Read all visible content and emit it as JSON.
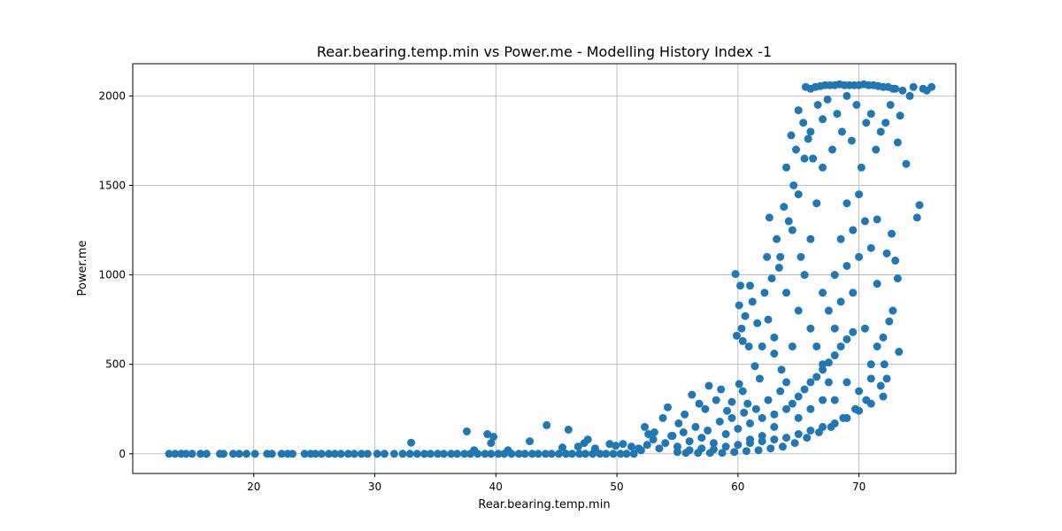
{
  "chart_data": {
    "type": "scatter",
    "title": "Rear.bearing.temp.min vs Power.me - Modelling History Index -1",
    "xlabel": "Rear.bearing.temp.min",
    "ylabel": "Power.me",
    "xlim": [
      10,
      78
    ],
    "ylim": [
      -110,
      2180
    ],
    "xticks": [
      20,
      30,
      40,
      50,
      60,
      70
    ],
    "yticks": [
      0,
      500,
      1000,
      1500,
      2000
    ],
    "grid": true,
    "marker_color": "#1f77b4",
    "series": [
      {
        "points": [
          [
            13,
            0
          ],
          [
            13.5,
            0
          ],
          [
            14,
            0
          ],
          [
            14.4,
            0
          ],
          [
            14.9,
            0
          ],
          [
            15.6,
            0
          ],
          [
            16.1,
            0
          ],
          [
            17.2,
            0
          ],
          [
            17.5,
            0
          ],
          [
            18.3,
            0
          ],
          [
            18.8,
            0
          ],
          [
            19.4,
            0
          ],
          [
            20.1,
            0
          ],
          [
            21.1,
            0
          ],
          [
            21.5,
            0
          ],
          [
            22.3,
            0
          ],
          [
            22.8,
            0
          ],
          [
            23.2,
            0
          ],
          [
            24.2,
            0
          ],
          [
            24.7,
            0
          ],
          [
            25.1,
            0
          ],
          [
            25.6,
            0
          ],
          [
            26.2,
            0
          ],
          [
            26.7,
            0
          ],
          [
            27.2,
            0
          ],
          [
            27.8,
            0
          ],
          [
            28.3,
            0
          ],
          [
            28.9,
            0
          ],
          [
            29.4,
            0
          ],
          [
            30.2,
            0
          ],
          [
            30.8,
            0
          ],
          [
            31.6,
            0
          ],
          [
            32.3,
            0
          ],
          [
            32.9,
            0
          ],
          [
            33.5,
            0
          ],
          [
            34.1,
            0
          ],
          [
            34.6,
            0
          ],
          [
            35.2,
            0
          ],
          [
            35.7,
            0
          ],
          [
            36.3,
            0
          ],
          [
            36.8,
            0
          ],
          [
            37.4,
            0
          ],
          [
            37.9,
            0
          ],
          [
            38.5,
            0
          ],
          [
            39.1,
            0
          ],
          [
            39.6,
            0
          ],
          [
            40.2,
            0
          ],
          [
            40.7,
            0
          ],
          [
            41.3,
            0
          ],
          [
            41.9,
            0
          ],
          [
            42.4,
            0
          ],
          [
            43,
            0
          ],
          [
            43.5,
            0
          ],
          [
            44.1,
            0
          ],
          [
            44.6,
            0
          ],
          [
            45.2,
            0
          ],
          [
            45.8,
            0
          ],
          [
            46.3,
            0
          ],
          [
            46.9,
            0
          ],
          [
            47.4,
            0
          ],
          [
            48,
            0
          ],
          [
            48.6,
            0
          ],
          [
            49.1,
            0
          ],
          [
            49.7,
            0
          ],
          [
            50.3,
            0
          ],
          [
            50.8,
            0
          ],
          [
            51.4,
            0
          ],
          [
            33,
            62
          ],
          [
            37.6,
            125
          ],
          [
            38.2,
            20
          ],
          [
            39.3,
            110
          ],
          [
            39.6,
            60
          ],
          [
            39.8,
            95
          ],
          [
            41,
            20
          ],
          [
            42.8,
            70
          ],
          [
            44.2,
            160
          ],
          [
            45.5,
            35
          ],
          [
            46,
            135
          ],
          [
            46.8,
            40
          ],
          [
            47.3,
            60
          ],
          [
            47.6,
            80
          ],
          [
            48.2,
            30
          ],
          [
            49.4,
            55
          ],
          [
            49.9,
            45
          ],
          [
            50.5,
            55
          ],
          [
            51.2,
            40
          ],
          [
            51.8,
            30
          ],
          [
            52.3,
            150
          ],
          [
            52.6,
            110
          ],
          [
            53.1,
            120
          ],
          [
            53.8,
            200
          ],
          [
            54.2,
            260
          ],
          [
            54.6,
            100
          ],
          [
            55.1,
            170
          ],
          [
            55.6,
            220
          ],
          [
            56.2,
            330
          ],
          [
            56.8,
            280
          ],
          [
            57.3,
            250
          ],
          [
            57.6,
            380
          ],
          [
            58.2,
            300
          ],
          [
            58.6,
            360
          ],
          [
            59.1,
            240
          ],
          [
            59.5,
            290
          ],
          [
            60.1,
            390
          ],
          [
            60.4,
            350
          ],
          [
            60.8,
            280
          ],
          [
            52,
            20
          ],
          [
            52.5,
            50
          ],
          [
            53,
            80
          ],
          [
            53.5,
            30
          ],
          [
            54,
            60
          ],
          [
            54.5,
            100
          ],
          [
            55,
            40
          ],
          [
            55.5,
            120
          ],
          [
            56,
            70
          ],
          [
            56.5,
            150
          ],
          [
            57,
            90
          ],
          [
            57.5,
            130
          ],
          [
            58,
            60
          ],
          [
            58.5,
            180
          ],
          [
            59,
            110
          ],
          [
            59.5,
            200
          ],
          [
            60,
            140
          ],
          [
            60.5,
            230
          ],
          [
            61,
            170
          ],
          [
            61.5,
            250
          ],
          [
            62,
            200
          ],
          [
            62.5,
            300
          ],
          [
            63,
            220
          ],
          [
            63.5,
            350
          ],
          [
            64,
            250
          ],
          [
            64.5,
            280
          ],
          [
            65,
            320
          ],
          [
            65.5,
            360
          ],
          [
            66,
            400
          ],
          [
            66.5,
            430
          ],
          [
            67,
            470
          ],
          [
            67.5,
            510
          ],
          [
            68,
            550
          ],
          [
            68.5,
            600
          ],
          [
            69,
            640
          ],
          [
            69.5,
            680
          ],
          [
            55,
            10
          ],
          [
            56,
            20
          ],
          [
            57,
            30
          ],
          [
            58,
            25
          ],
          [
            59,
            40
          ],
          [
            60,
            50
          ],
          [
            61,
            60
          ],
          [
            62,
            70
          ],
          [
            63,
            80
          ],
          [
            64,
            90
          ],
          [
            65,
            110
          ],
          [
            66,
            130
          ],
          [
            67,
            150
          ],
          [
            68,
            170
          ],
          [
            69,
            200
          ],
          [
            70,
            240
          ],
          [
            71,
            280
          ],
          [
            72,
            320
          ],
          [
            59.8,
            1005
          ],
          [
            59.9,
            660
          ],
          [
            60.1,
            830
          ],
          [
            60.2,
            940
          ],
          [
            60.3,
            700
          ],
          [
            60.4,
            630
          ],
          [
            60.6,
            770
          ],
          [
            60.9,
            600
          ],
          [
            61,
            940
          ],
          [
            61.2,
            850
          ],
          [
            61.4,
            490
          ],
          [
            61.6,
            730
          ],
          [
            61.8,
            420
          ],
          [
            62,
            600
          ],
          [
            62.2,
            900
          ],
          [
            62.4,
            1100
          ],
          [
            62.6,
            1320
          ],
          [
            62.8,
            980
          ],
          [
            63,
            560
          ],
          [
            63.2,
            1200
          ],
          [
            63.4,
            1040
          ],
          [
            63.6,
            470
          ],
          [
            63.8,
            1380
          ],
          [
            64,
            1600
          ],
          [
            64.2,
            1300
          ],
          [
            64.4,
            1780
          ],
          [
            64.6,
            1500
          ],
          [
            64.8,
            1700
          ],
          [
            65,
            1920
          ],
          [
            65.2,
            1100
          ],
          [
            65.4,
            1850
          ],
          [
            65.6,
            2050
          ],
          [
            65.8,
            1760
          ],
          [
            66,
            2040
          ],
          [
            66.2,
            1650
          ],
          [
            66.4,
            2050
          ],
          [
            66.6,
            1950
          ],
          [
            66.8,
            2055
          ],
          [
            67,
            1870
          ],
          [
            67.2,
            2060
          ],
          [
            67.4,
            1980
          ],
          [
            67.6,
            2060
          ],
          [
            67.8,
            1700
          ],
          [
            68,
            2060
          ],
          [
            68.2,
            1900
          ],
          [
            68.4,
            2065
          ],
          [
            68.6,
            1800
          ],
          [
            68.8,
            2060
          ],
          [
            69,
            2000
          ],
          [
            69.2,
            2060
          ],
          [
            69.4,
            1750
          ],
          [
            69.6,
            2060
          ],
          [
            69.8,
            1950
          ],
          [
            70,
            2060
          ],
          [
            70.2,
            1600
          ],
          [
            70.4,
            2065
          ],
          [
            70.6,
            1850
          ],
          [
            70.8,
            2060
          ],
          [
            71,
            1900
          ],
          [
            71.2,
            2060
          ],
          [
            71.4,
            1700
          ],
          [
            71.6,
            2055
          ],
          [
            71.8,
            1800
          ],
          [
            72,
            2050
          ],
          [
            72.2,
            1850
          ],
          [
            72.4,
            2050
          ],
          [
            72.6,
            1950
          ],
          [
            72.8,
            2040
          ],
          [
            73,
            2040
          ],
          [
            73.2,
            1740
          ],
          [
            73.4,
            1890
          ],
          [
            73.6,
            2030
          ],
          [
            73.9,
            1620
          ],
          [
            74.2,
            2000
          ],
          [
            74.5,
            2050
          ],
          [
            74.8,
            1320
          ],
          [
            75,
            1390
          ],
          [
            75.3,
            2040
          ],
          [
            75.6,
            2030
          ],
          [
            76,
            2050
          ],
          [
            71.5,
            1310
          ],
          [
            72.3,
            1120
          ],
          [
            72.7,
            1230
          ],
          [
            73,
            1080
          ],
          [
            73.2,
            980
          ],
          [
            72.8,
            800
          ],
          [
            73.3,
            570
          ],
          [
            72.5,
            740
          ],
          [
            72.1,
            500
          ],
          [
            64,
            400
          ],
          [
            64.5,
            600
          ],
          [
            65,
            800
          ],
          [
            65.5,
            1000
          ],
          [
            66,
            1200
          ],
          [
            66.5,
            1400
          ],
          [
            67,
            1600
          ],
          [
            67.5,
            800
          ],
          [
            68,
            1000
          ],
          [
            68.5,
            1200
          ],
          [
            69,
            1400
          ],
          [
            69.5,
            900
          ],
          [
            70,
            1100
          ],
          [
            70.5,
            700
          ],
          [
            71,
            500
          ],
          [
            71.5,
            600
          ],
          [
            66,
            700
          ],
          [
            67,
            900
          ],
          [
            68,
            300
          ],
          [
            69,
            400
          ],
          [
            70,
            350
          ],
          [
            71,
            420
          ],
          [
            65,
            200
          ],
          [
            66,
            250
          ],
          [
            67,
            300
          ],
          [
            63,
            150
          ],
          [
            62,
            100
          ],
          [
            61,
            80
          ],
          [
            63,
            650
          ],
          [
            62.5,
            750
          ],
          [
            64,
            900
          ],
          [
            63.5,
            1100
          ],
          [
            64.5,
            1250
          ],
          [
            65,
            1450
          ],
          [
            65.5,
            1650
          ],
          [
            66,
            1800
          ],
          [
            66.5,
            600
          ],
          [
            67,
            500
          ],
          [
            67.5,
            400
          ],
          [
            68,
            700
          ],
          [
            68.5,
            850
          ],
          [
            69,
            1050
          ],
          [
            69.5,
            1250
          ],
          [
            70,
            1450
          ],
          [
            70.5,
            1300
          ],
          [
            71,
            1150
          ],
          [
            71.5,
            950
          ],
          [
            72,
            650
          ],
          [
            72.3,
            420
          ],
          [
            71.8,
            380
          ],
          [
            70.6,
            300
          ],
          [
            69.7,
            250
          ],
          [
            68.7,
            200
          ],
          [
            67.7,
            150
          ],
          [
            66.7,
            120
          ],
          [
            65.7,
            90
          ],
          [
            64.7,
            60
          ],
          [
            63.7,
            40
          ],
          [
            62.7,
            30
          ],
          [
            61.7,
            20
          ],
          [
            60.7,
            15
          ],
          [
            59.7,
            10
          ],
          [
            58.7,
            5
          ],
          [
            57.7,
            5
          ],
          [
            56.7,
            5
          ],
          [
            55.7,
            5
          ]
        ]
      }
    ]
  }
}
